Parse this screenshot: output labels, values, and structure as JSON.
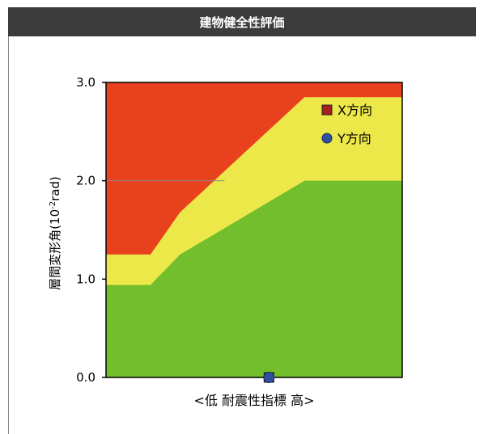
{
  "header": {
    "title": "建物健全性評価"
  },
  "colors": {
    "red": "#E8411E",
    "yellow": "#EDE84A",
    "green": "#72BE2D",
    "x_marker": "#A51E22",
    "y_marker": "#2F4FA0",
    "grid": "#888888"
  },
  "chart_data": {
    "type": "area",
    "title": "建物健全性評価",
    "xlabel": "<低  耐震性指標  高>",
    "ylabel": "層間変形角(10-2rad)",
    "ylabel_parts": {
      "prefix": "層間変形角(10",
      "exp": "-2",
      "suffix": "rad)"
    },
    "ylim": [
      0,
      3
    ],
    "xlim": [
      0,
      1
    ],
    "y_ticks": [
      "0.0",
      "1.0",
      "2.0",
      "3.0"
    ],
    "grid": [
      2.0
    ],
    "bands": [
      {
        "name": "danger",
        "color": "red",
        "upper": 3.0
      },
      {
        "name": "caution",
        "color": "yellow",
        "x": [
          0,
          0.15,
          0.25,
          0.67,
          1.0
        ],
        "values": [
          1.25,
          1.25,
          1.68,
          2.85,
          2.85
        ]
      },
      {
        "name": "safe",
        "color": "green",
        "x": [
          0,
          0.15,
          0.25,
          0.67,
          1.0
        ],
        "values": [
          0.94,
          0.94,
          1.25,
          2.0,
          2.0
        ]
      }
    ],
    "series": [
      {
        "name": "X方向",
        "marker": "square",
        "color": "x_marker",
        "points": [
          {
            "x": 0.55,
            "y": 0.0
          }
        ]
      },
      {
        "name": "Y方向",
        "marker": "circle",
        "color": "y_marker",
        "points": [
          {
            "x": 0.55,
            "y": 0.0
          }
        ]
      }
    ],
    "legend": {
      "placement": "top-right",
      "items": [
        {
          "label": "X方向",
          "marker": "square",
          "color": "x_marker"
        },
        {
          "label": "Y方向",
          "marker": "circle",
          "color": "y_marker"
        }
      ]
    }
  }
}
